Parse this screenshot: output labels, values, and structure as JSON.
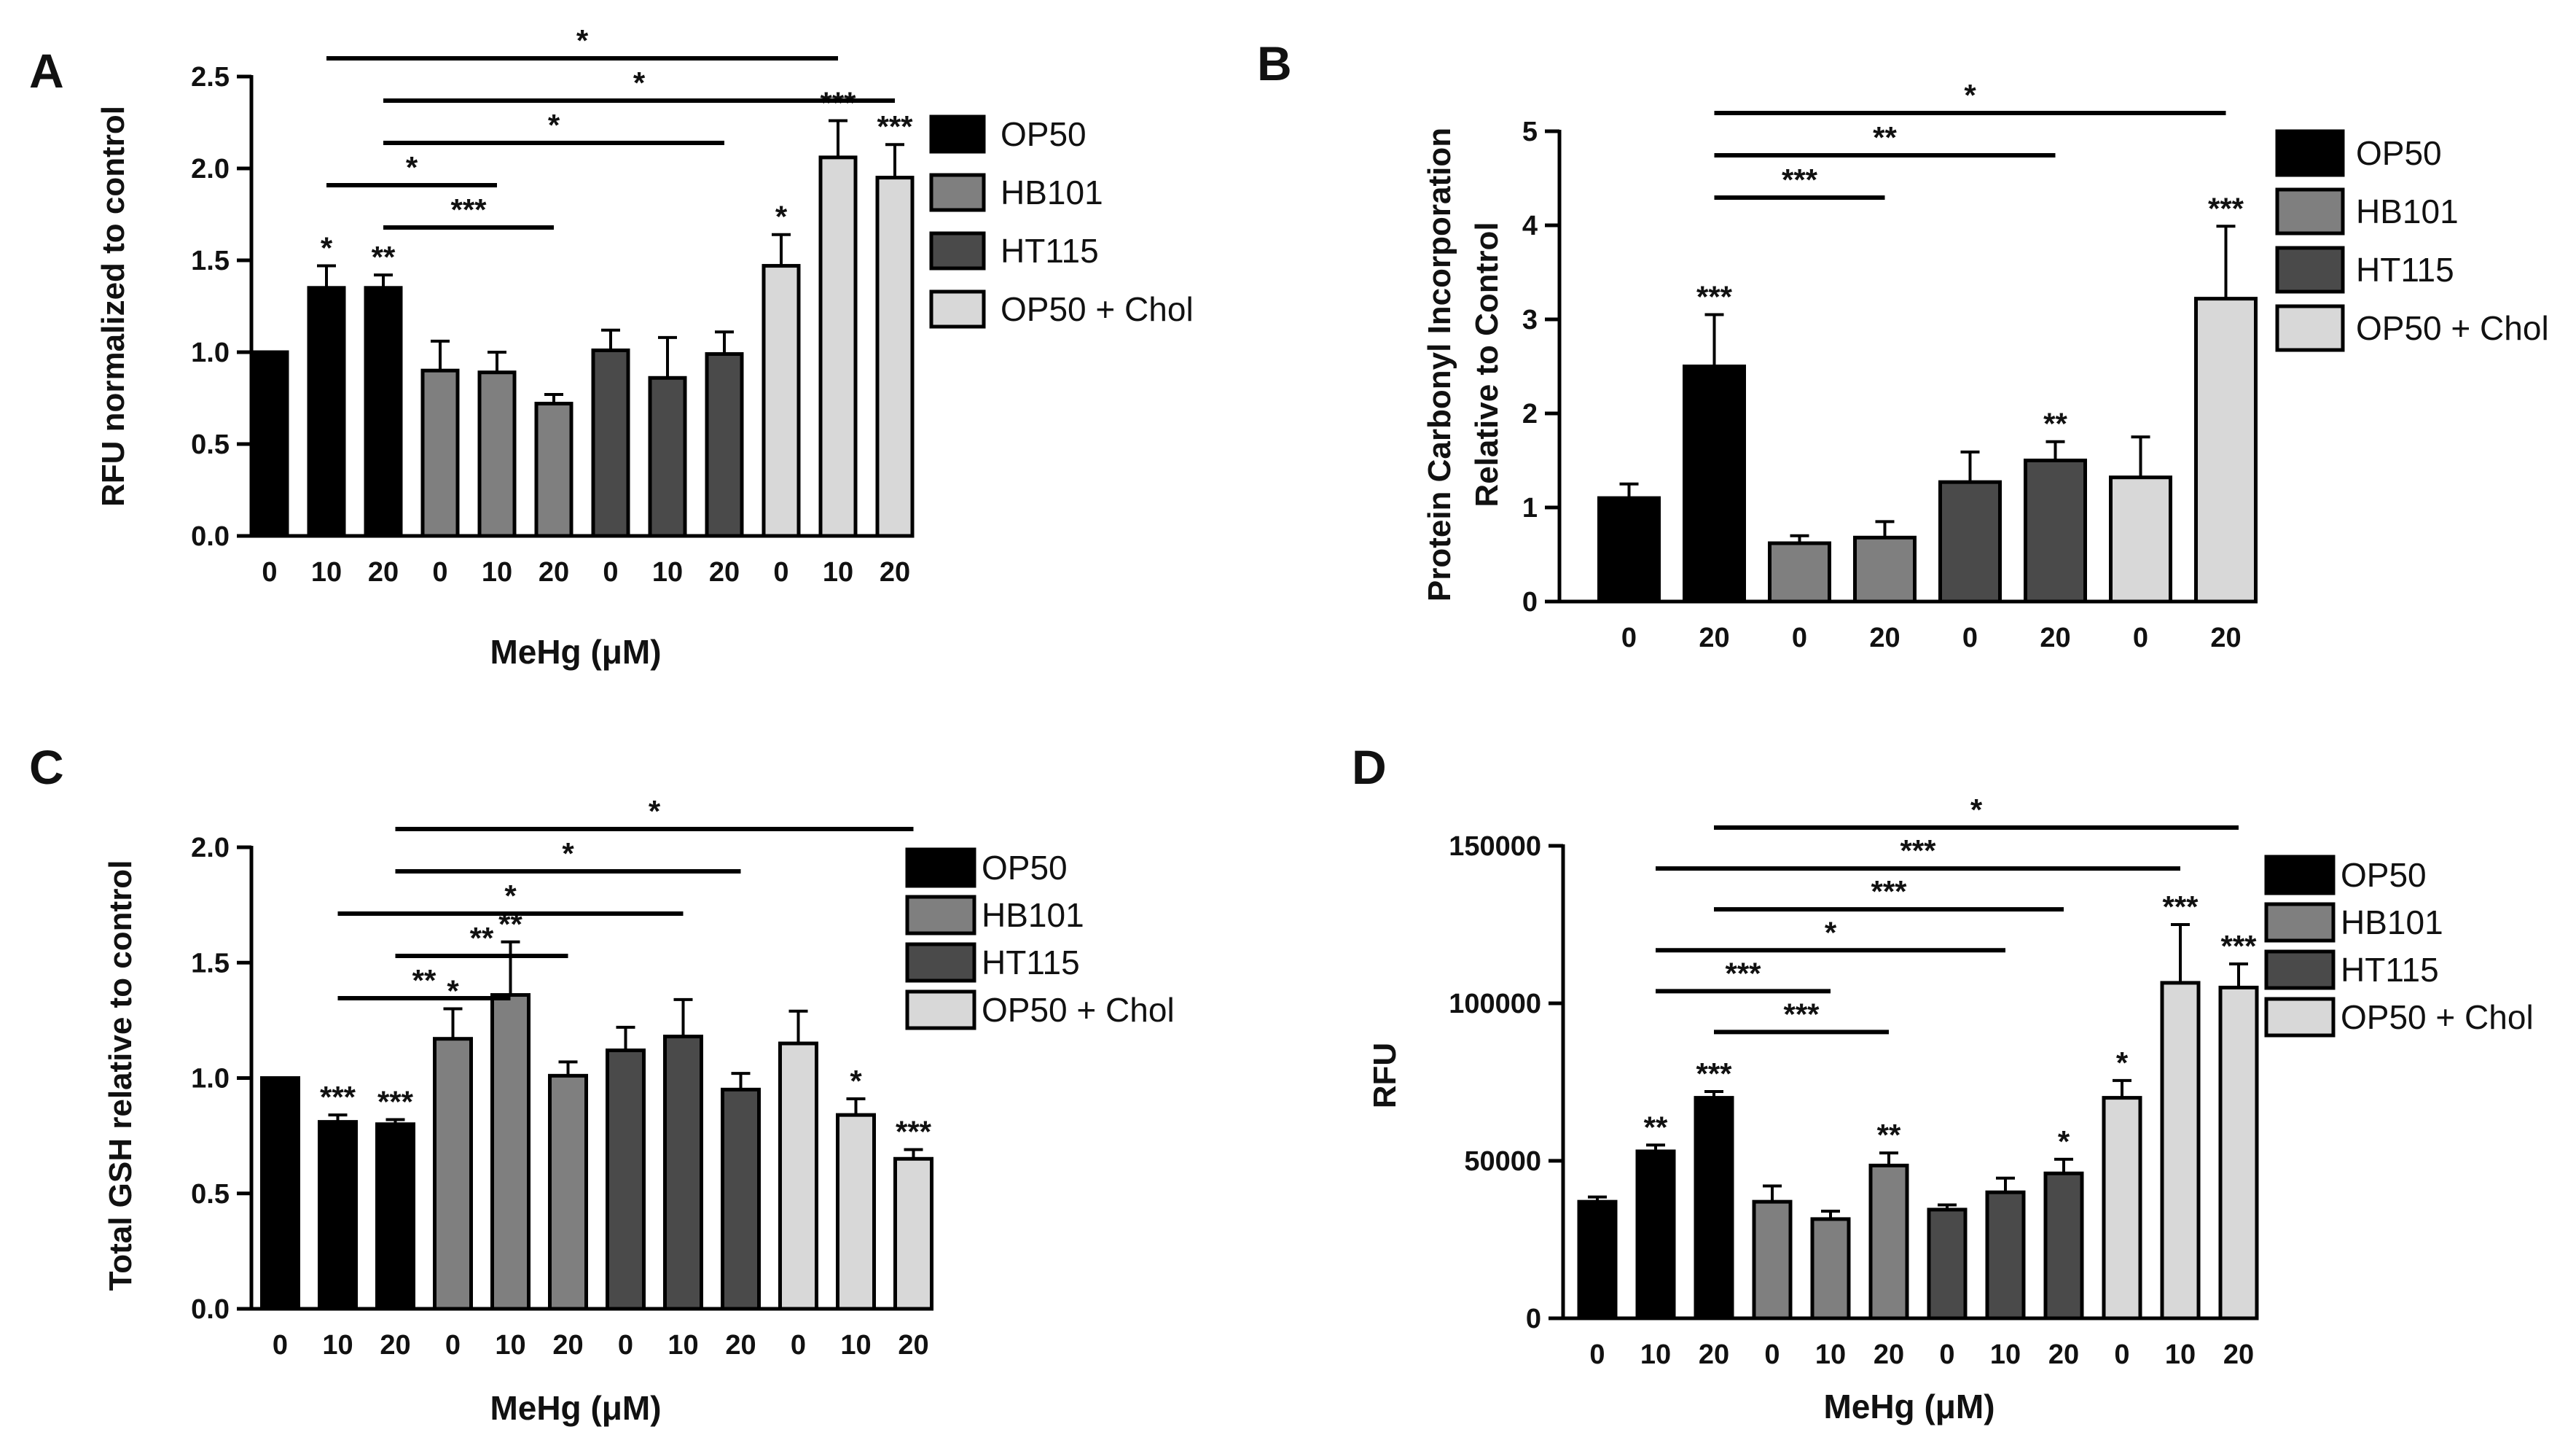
{
  "series_names": [
    "OP50",
    "HB101",
    "HT115",
    "OP50 + Chol"
  ],
  "colors": {
    "OP50": "#000000",
    "HB101": "#7f7f7f",
    "HT115": "#4a4a4a",
    "OP50 + Chol": "#d8d8d8"
  },
  "chart_data": [
    {
      "panel": "A",
      "type": "bar",
      "ylabel": "RFU normalized to control",
      "xlabel": "MeHg (μM)",
      "ylim": [
        0,
        2.5
      ],
      "yticks": [
        "0.0",
        "0.5",
        "1.0",
        "1.5",
        "2.0",
        "2.5"
      ],
      "categories": [
        "0",
        "10",
        "20",
        "0",
        "10",
        "20",
        "0",
        "10",
        "20",
        "0",
        "10",
        "20"
      ],
      "groups": [
        "OP50",
        "OP50",
        "OP50",
        "HB101",
        "HB101",
        "HB101",
        "HT115",
        "HT115",
        "HT115",
        "OP50 + Chol",
        "OP50 + Chol",
        "OP50 + Chol"
      ],
      "values": [
        1.0,
        1.35,
        1.35,
        0.9,
        0.89,
        0.72,
        1.01,
        0.86,
        0.99,
        1.47,
        2.06,
        1.95
      ],
      "errors": [
        0,
        0.12,
        0.07,
        0.16,
        0.11,
        0.05,
        0.11,
        0.22,
        0.12,
        0.17,
        0.2,
        0.18
      ],
      "bar_annotations": [
        "",
        "*",
        "**",
        "",
        "",
        "",
        "",
        "",
        "",
        "*",
        "***",
        "***"
      ],
      "comparisons": [
        {
          "from": 1,
          "to": 10,
          "label": "*"
        },
        {
          "from": 2,
          "to": 11,
          "label": "*"
        },
        {
          "from": 2,
          "to": 8,
          "label": "*"
        },
        {
          "from": 1,
          "to": 4,
          "label": "*"
        },
        {
          "from": 2,
          "to": 5,
          "label": "***"
        }
      ]
    },
    {
      "panel": "B",
      "type": "bar",
      "ylabel": "Protein Carbonyl Incorporation",
      "ylabel2": "Relative to Control",
      "xlabel": "",
      "ylim": [
        0,
        5
      ],
      "yticks": [
        "0",
        "1",
        "2",
        "3",
        "4",
        "5"
      ],
      "categories": [
        "0",
        "20",
        "0",
        "20",
        "0",
        "20",
        "0",
        "20"
      ],
      "groups": [
        "OP50",
        "OP50",
        "HB101",
        "HB101",
        "HT115",
        "HT115",
        "OP50 + Chol",
        "OP50 + Chol"
      ],
      "values": [
        1.1,
        2.5,
        0.62,
        0.68,
        1.27,
        1.5,
        1.32,
        3.22
      ],
      "errors": [
        0.15,
        0.55,
        0.08,
        0.17,
        0.32,
        0.2,
        0.43,
        0.77
      ],
      "bar_annotations": [
        "",
        "***",
        "",
        "",
        "",
        "**",
        "",
        "***"
      ],
      "comparisons": [
        {
          "from": 1,
          "to": 7,
          "label": "*"
        },
        {
          "from": 1,
          "to": 5,
          "label": "**"
        },
        {
          "from": 1,
          "to": 3,
          "label": "***"
        }
      ]
    },
    {
      "panel": "C",
      "type": "bar",
      "ylabel": "Total GSH relative to control",
      "xlabel": "MeHg (μM)",
      "ylim": [
        0,
        2.0
      ],
      "yticks": [
        "0.0",
        "0.5",
        "1.0",
        "1.5",
        "2.0"
      ],
      "categories": [
        "0",
        "10",
        "20",
        "0",
        "10",
        "20",
        "0",
        "10",
        "20",
        "0",
        "10",
        "20"
      ],
      "groups": [
        "OP50",
        "OP50",
        "OP50",
        "HB101",
        "HB101",
        "HB101",
        "HT115",
        "HT115",
        "HT115",
        "OP50 + Chol",
        "OP50 + Chol",
        "OP50 + Chol"
      ],
      "values": [
        1.0,
        0.81,
        0.8,
        1.17,
        1.36,
        1.01,
        1.12,
        1.18,
        0.95,
        1.15,
        0.84,
        0.65
      ],
      "errors": [
        0,
        0.03,
        0.02,
        0.13,
        0.23,
        0.06,
        0.1,
        0.16,
        0.07,
        0.14,
        0.07,
        0.04
      ],
      "bar_annotations": [
        "",
        "***",
        "***",
        "*",
        "**",
        "",
        "",
        "",
        "",
        "",
        "*",
        "***"
      ],
      "comparisons": [
        {
          "from": 2,
          "to": 11,
          "label": "*"
        },
        {
          "from": 2,
          "to": 8,
          "label": "*"
        },
        {
          "from": 1,
          "to": 7,
          "label": "*"
        },
        {
          "from": 2,
          "to": 5,
          "label": "**"
        },
        {
          "from": 1,
          "to": 4,
          "label": "**"
        }
      ]
    },
    {
      "panel": "D",
      "type": "bar",
      "ylabel": "RFU",
      "xlabel": "MeHg (μM)",
      "ylim": [
        0,
        150000
      ],
      "yticks": [
        "0",
        "50000",
        "100000",
        "150000"
      ],
      "categories": [
        "0",
        "10",
        "20",
        "0",
        "10",
        "20",
        "0",
        "10",
        "20",
        "0",
        "10",
        "20"
      ],
      "groups": [
        "OP50",
        "OP50",
        "OP50",
        "HB101",
        "HB101",
        "HB101",
        "HT115",
        "HT115",
        "HT115",
        "OP50 + Chol",
        "OP50 + Chol",
        "OP50 + Chol"
      ],
      "values": [
        37000,
        53000,
        70000,
        37000,
        31500,
        48500,
        34500,
        40000,
        46000,
        70000,
        106500,
        105000
      ],
      "errors": [
        1500,
        2000,
        2000,
        5000,
        2500,
        4000,
        1500,
        4500,
        4500,
        5500,
        18500,
        7500
      ],
      "bar_annotations": [
        "",
        "**",
        "***",
        "",
        "",
        "**",
        "",
        "",
        "*",
        "*",
        "***",
        "***"
      ],
      "comparisons": [
        {
          "from": 2,
          "to": 11,
          "label": "*"
        },
        {
          "from": 1,
          "to": 10,
          "label": "***"
        },
        {
          "from": 2,
          "to": 8,
          "label": "***"
        },
        {
          "from": 1,
          "to": 7,
          "label": "*"
        },
        {
          "from": 1,
          "to": 4,
          "label": "***"
        },
        {
          "from": 2,
          "to": 5,
          "label": "***"
        }
      ]
    }
  ]
}
